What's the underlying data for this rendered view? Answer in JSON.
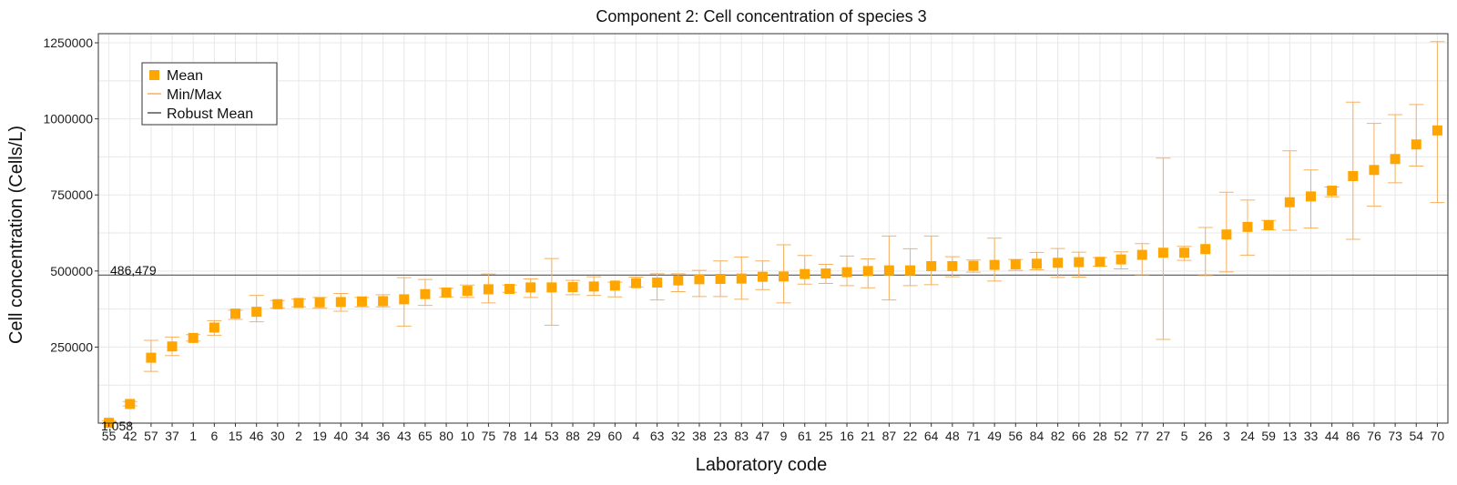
{
  "chart_data": {
    "type": "scatter",
    "title": "Component 2: Cell concentration of species 3",
    "xlabel": "Laboratory code",
    "ylabel": "Cell concentration (Cells/L)",
    "ylim": [
      0,
      1280000
    ],
    "yticks": [
      250000,
      500000,
      750000,
      1000000,
      1250000
    ],
    "ytick_labels": [
      "250000",
      "500000",
      "750000",
      "1000000",
      "1250000"
    ],
    "grid": true,
    "legend_position": "top-left",
    "categories": [
      "55",
      "42",
      "57",
      "37",
      "1",
      "6",
      "15",
      "46",
      "30",
      "2",
      "19",
      "40",
      "34",
      "36",
      "43",
      "65",
      "80",
      "10",
      "75",
      "78",
      "14",
      "53",
      "88",
      "29",
      "60",
      "4",
      "63",
      "32",
      "38",
      "23",
      "83",
      "47",
      "9",
      "61",
      "25",
      "16",
      "21",
      "87",
      "22",
      "64",
      "48",
      "71",
      "49",
      "56",
      "84",
      "82",
      "66",
      "28",
      "52",
      "77",
      "27",
      "5",
      "26",
      "3",
      "24",
      "59",
      "13",
      "33",
      "44",
      "86",
      "76",
      "73",
      "54",
      "70"
    ],
    "series": [
      {
        "name": "Mean",
        "values": [
          1058,
          63000,
          215000,
          252000,
          280000,
          314000,
          360000,
          366000,
          391000,
          395000,
          397000,
          398000,
          400000,
          401000,
          407000,
          424000,
          429000,
          435000,
          440000,
          441000,
          446000,
          446000,
          447000,
          449000,
          452000,
          460000,
          462000,
          469000,
          473000,
          474000,
          475000,
          481000,
          482000,
          490000,
          492000,
          496000,
          500000,
          502000,
          502000,
          516000,
          516000,
          517000,
          520000,
          522000,
          524000,
          527000,
          529000,
          530000,
          538000,
          553000,
          560000,
          560000,
          572000,
          620000,
          645000,
          651000,
          726000,
          745000,
          764000,
          812000,
          832000,
          868000,
          916000,
          962000
        ]
      },
      {
        "name": "Min/Max",
        "min": [
          0,
          57000,
          170000,
          222000,
          270000,
          289000,
          341000,
          333000,
          378000,
          382000,
          378000,
          368000,
          382000,
          382000,
          319000,
          387000,
          415000,
          413000,
          395000,
          430000,
          413000,
          322000,
          422000,
          420000,
          415000,
          448000,
          405000,
          432000,
          416000,
          416000,
          407000,
          439000,
          395000,
          457000,
          459000,
          452000,
          445000,
          405000,
          452000,
          455000,
          481000,
          496000,
          467000,
          502000,
          504000,
          479000,
          480000,
          516000,
          507000,
          488000,
          275000,
          535000,
          485000,
          497000,
          552000,
          635000,
          634000,
          641000,
          744000,
          604000,
          713000,
          790000,
          845000,
          725000
        ],
        "max": [
          8000,
          71000,
          272000,
          283000,
          291000,
          337000,
          371000,
          420000,
          403000,
          408000,
          413000,
          426000,
          413000,
          422000,
          478000,
          472000,
          443000,
          454000,
          490000,
          454000,
          474000,
          541000,
          469000,
          481000,
          463000,
          480000,
          491000,
          491000,
          502000,
          533000,
          546000,
          533000,
          586000,
          551000,
          522000,
          549000,
          540000,
          615000,
          573000,
          615000,
          547000,
          536000,
          608000,
          538000,
          561000,
          574000,
          562000,
          544000,
          563000,
          590000,
          871000,
          581000,
          643000,
          759000,
          733000,
          666000,
          895000,
          832000,
          776000,
          1055000,
          985000,
          1014000,
          1047000,
          1254000
        ]
      },
      {
        "name": "Robust Mean",
        "value": 486479
      }
    ],
    "annotations": {
      "robust_mean_label": "486,479",
      "min_point_label": "1,058"
    }
  },
  "colors": {
    "mean": "#FFA500",
    "minmax": "#F6B060",
    "robust_mean": "#555555",
    "grid": "#E8E8E8",
    "axis": "#333333"
  }
}
